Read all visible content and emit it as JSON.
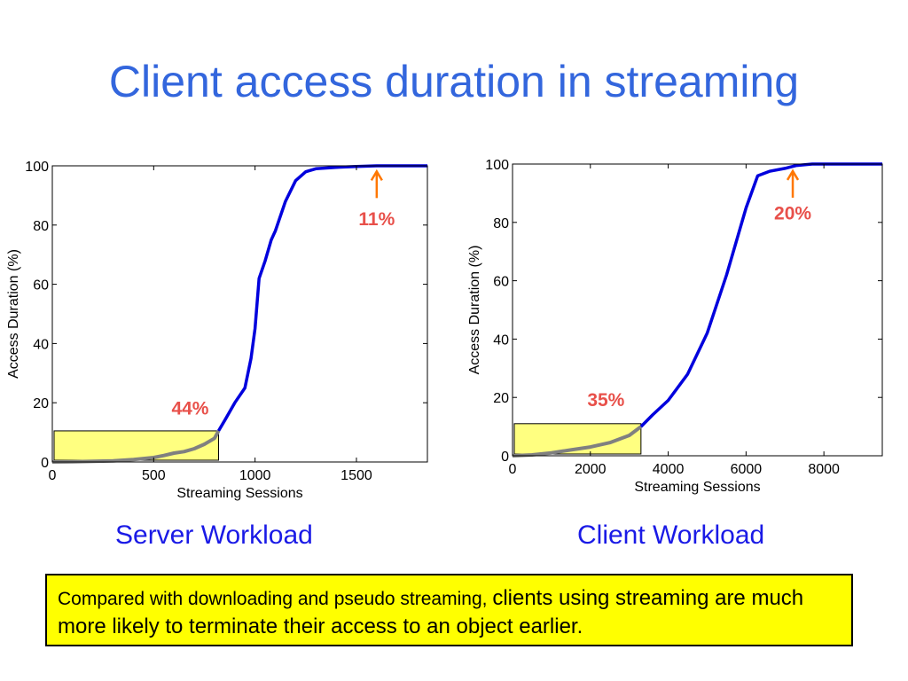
{
  "title": "Client access duration in streaming",
  "chart_data": [
    {
      "type": "line",
      "caption": "Server Workload",
      "xlabel": "Streaming Sessions",
      "ylabel": "Access Duration (%)",
      "xlim": [
        0,
        1850
      ],
      "ylim": [
        0,
        100
      ],
      "xticks": [
        0,
        500,
        1000,
        1500
      ],
      "yticks": [
        0,
        20,
        40,
        60,
        80,
        100
      ],
      "grid": false,
      "colors": {
        "curve": "#0000dd",
        "highlight": "#808080",
        "box": "#ffff80",
        "arrow": "#ff7700",
        "annotation": "#e8504a"
      },
      "highlight_box": {
        "x": [
          0,
          820
        ],
        "y": [
          0,
          10.5
        ]
      },
      "series": [
        {
          "x": [
            0,
            100,
            200,
            300,
            400,
            500,
            550,
            600,
            650,
            700,
            750,
            800,
            820,
            850,
            900,
            950,
            980,
            1000,
            1020,
            1050,
            1080,
            1100,
            1150,
            1200,
            1250,
            1300,
            1400,
            1500,
            1600,
            1700,
            1850
          ],
          "y": [
            0,
            0.1,
            0.2,
            0.4,
            0.8,
            1.5,
            2.2,
            3,
            3.5,
            4.5,
            6,
            8,
            10.5,
            14,
            20,
            25,
            35,
            45,
            62,
            68,
            75,
            78,
            88,
            95,
            98,
            99,
            99.5,
            99.8,
            100,
            100,
            100
          ]
        }
      ],
      "annotations": [
        {
          "text": "11%",
          "x": 1600,
          "y": 80,
          "arrow_to": [
            1600,
            99
          ]
        },
        {
          "text": "44%",
          "x": 680,
          "y": 16
        }
      ]
    },
    {
      "type": "line",
      "caption": "Client Workload",
      "xlabel": "Streaming Sessions",
      "ylabel": "Access Duration (%)",
      "xlim": [
        0,
        9500
      ],
      "ylim": [
        0,
        100
      ],
      "xticks": [
        0,
        2000,
        4000,
        6000,
        8000
      ],
      "yticks": [
        0,
        20,
        40,
        60,
        80,
        100
      ],
      "grid": false,
      "colors": {
        "curve": "#0000dd",
        "highlight": "#808080",
        "box": "#ffff80",
        "arrow": "#ff7700",
        "annotation": "#e8504a"
      },
      "highlight_box": {
        "x": [
          0,
          3300
        ],
        "y": [
          0,
          11
        ]
      },
      "series": [
        {
          "x": [
            0,
            500,
            1000,
            1500,
            2000,
            2500,
            3000,
            3300,
            3600,
            4000,
            4500,
            5000,
            5500,
            6000,
            6300,
            6600,
            7000,
            7300,
            7700,
            8500,
            9500
          ],
          "y": [
            0,
            0.3,
            1,
            2,
            3,
            4.5,
            7,
            10,
            14,
            19,
            28,
            42,
            62,
            85,
            96,
            97.5,
            98.5,
            99.5,
            100,
            100,
            100
          ]
        }
      ],
      "annotations": [
        {
          "text": "20%",
          "x": 7200,
          "y": 81,
          "arrow_to": [
            7200,
            98.5
          ]
        },
        {
          "text": "35%",
          "x": 2400,
          "y": 17
        }
      ]
    }
  ],
  "note": {
    "lead": "Compared with downloading and pseudo streaming, ",
    "rest": "clients using streaming are much more likely to terminate their access to an object earlier."
  }
}
